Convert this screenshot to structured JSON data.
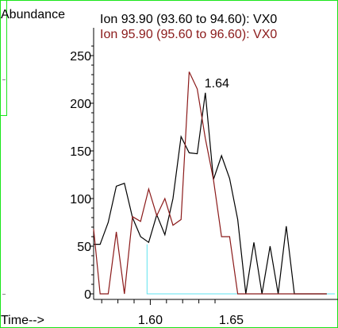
{
  "chart_data": {
    "type": "line",
    "ylabel": "Abundance",
    "xlabel": "Time-->",
    "xlim": [
      1.565,
      1.714
    ],
    "ylim": [
      0,
      280
    ],
    "yticks": [
      0,
      50,
      100,
      150,
      200,
      250
    ],
    "xticks_labeled": [
      "1.60",
      "1.65"
    ],
    "peak_annotation": {
      "text": "1.64"
    },
    "series": [
      {
        "name": "Ion  93.90 (93.60 to 94.60): VX0",
        "color": "#000000",
        "x": [
          1.565,
          1.569,
          1.574,
          1.579,
          1.584,
          1.589,
          1.594,
          1.599,
          1.604,
          1.609,
          1.614,
          1.619,
          1.624,
          1.629,
          1.634,
          1.639,
          1.644,
          1.649,
          1.654,
          1.659,
          1.664,
          1.669,
          1.674,
          1.679,
          1.684,
          1.689,
          1.694,
          1.699,
          1.704,
          1.709
        ],
        "y": [
          52,
          52,
          75,
          113,
          116,
          80,
          60,
          54,
          83,
          62,
          100,
          165,
          148,
          147,
          211,
          120,
          145,
          121,
          78,
          0,
          54,
          0,
          50,
          0,
          71,
          0,
          0,
          0,
          0,
          0
        ]
      },
      {
        "name": "Ion  95.90 (95.60 to 96.60): VX0",
        "color": "#8b1a1a",
        "x": [
          1.565,
          1.569,
          1.574,
          1.579,
          1.584,
          1.589,
          1.594,
          1.599,
          1.604,
          1.609,
          1.614,
          1.619,
          1.624,
          1.629,
          1.634,
          1.639,
          1.644,
          1.649,
          1.654,
          1.659,
          1.664,
          1.669,
          1.674,
          1.679,
          1.684,
          1.689,
          1.694,
          1.699,
          1.704,
          1.709
        ],
        "y": [
          68,
          0,
          0,
          65,
          0,
          81,
          76,
          110,
          82,
          100,
          72,
          78,
          233,
          215,
          163,
          120,
          60,
          60,
          0,
          0,
          0,
          0,
          0,
          0,
          0,
          0,
          0,
          0,
          0,
          0
        ]
      }
    ],
    "baseline_marker": {
      "color": "#5fe3f0",
      "x_from": 1.598,
      "x_to": 1.714
    }
  }
}
